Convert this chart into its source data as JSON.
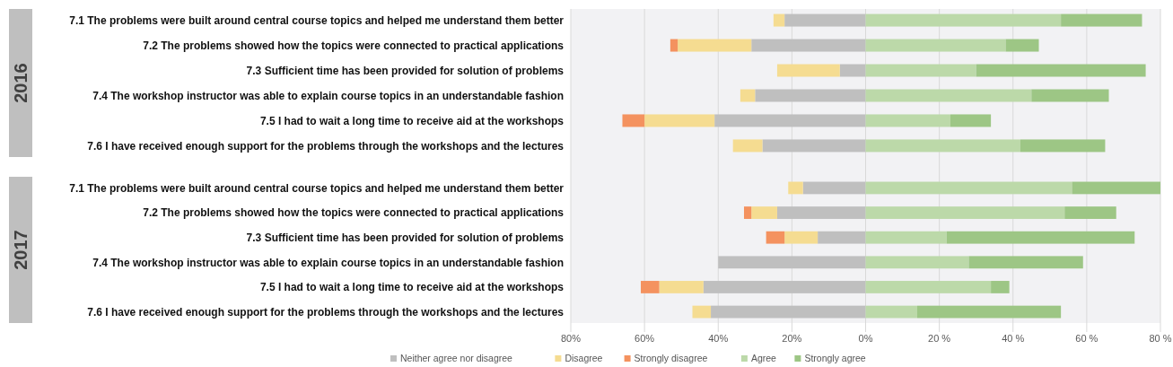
{
  "chart_data": [
    {
      "type": "bar",
      "title": "2016",
      "orientation": "horizontal",
      "stacked": true,
      "grid": "x",
      "tick_labels": "y",
      "xlim": [
        -80,
        80
      ],
      "xticks": [
        -80,
        -60,
        -40,
        -20,
        0,
        20,
        40,
        60,
        80
      ],
      "categories": [
        "7.1 The problems were built around central course topics and helped me understand them better",
        "7.2 The problems showed how the topics were connected to practical applications",
        "7.3 Sufficient time has been provided for solution of problems",
        "7.4 The workshop instructor was able to explain course topics in an understandable fashion",
        "7.5 I had to wait a long time to receive aid at the workshops",
        "7.6 I have received enough support for the problems through the workshops and the lectures"
      ],
      "series": [
        {
          "color": "#bfbfbf",
          "values": [
            -22,
            -31,
            -7,
            -30,
            -41,
            -28
          ]
        },
        {
          "color": "#f5dc91",
          "values": [
            -3,
            -20,
            -17,
            -4,
            -19,
            -8
          ]
        },
        {
          "color": "#f4925f",
          "values": [
            null,
            -2,
            null,
            null,
            -6,
            null
          ]
        },
        {
          "color": "#bcd9a9",
          "values": [
            53,
            38,
            30,
            45,
            23,
            42
          ]
        },
        {
          "color": "#9dc685",
          "values": [
            22,
            9,
            46,
            21,
            11,
            23
          ]
        }
      ]
    },
    {
      "type": "bar",
      "title": "2017",
      "orientation": "horizontal",
      "stacked": true,
      "grid": "x",
      "legend": "bottom",
      "xlim": [
        -80,
        80
      ],
      "xticks": [
        {
          "value": -80,
          "label": "80%"
        },
        {
          "value": -60,
          "label": "60%"
        },
        {
          "value": -40,
          "label": "40%"
        },
        {
          "value": -20,
          "label": "20%"
        },
        {
          "value": 0,
          "label": "0%"
        },
        {
          "value": 20,
          "label": "20 %"
        },
        {
          "value": 40,
          "label": "40 %"
        },
        {
          "value": 60,
          "label": "60 %"
        },
        {
          "value": 80,
          "label": "80 %"
        }
      ],
      "categories": [
        "7.1 The problems were built around central course topics and helped me understand them better",
        "7.2 The problems showed how the topics were connected to practical applications",
        "7.3 Sufficient time has been provided for solution of problems",
        "7.4 The workshop instructor was able to explain course topics in an understandable fashion",
        "7.5 I had to wait a long time to receive aid at the workshops",
        "7.6 I have received enough support for the problems through the workshops and the lectures"
      ],
      "series": [
        {
          "name": "Neither agree nor disagree",
          "color": "#bfbfbf",
          "values": [
            -17,
            -24,
            -13,
            -40,
            -44,
            -42
          ]
        },
        {
          "name": "Disagree",
          "color": "#f5dc91",
          "values": [
            -4,
            -7,
            -9,
            null,
            -12,
            -5
          ]
        },
        {
          "name": "Strongly disagree",
          "color": "#f4925f",
          "values": [
            null,
            -2,
            -5,
            null,
            -5,
            null
          ]
        },
        {
          "name": "Agree",
          "color": "#bcd9a9",
          "values": [
            56,
            54,
            22,
            28,
            34,
            14
          ]
        },
        {
          "name": "Strongly agree",
          "color": "#9dc685",
          "values": [
            24,
            14,
            51,
            31,
            5,
            39
          ]
        }
      ]
    }
  ]
}
